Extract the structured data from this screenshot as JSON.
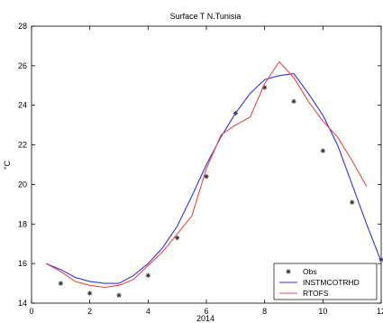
{
  "chart_data": {
    "type": "line",
    "title": "Surface T N.Tunisia",
    "xlabel": "2014",
    "ylabel": "°C",
    "xlim": [
      0,
      12
    ],
    "ylim": [
      14,
      28
    ],
    "xticks": [
      0,
      2,
      4,
      6,
      8,
      10,
      12
    ],
    "yticks": [
      14,
      16,
      18,
      20,
      22,
      24,
      26,
      28
    ],
    "grid": false,
    "legend_position": "lower-right",
    "series": [
      {
        "name": "Obs",
        "style": "marker",
        "marker": "asterisk",
        "color": "#333333",
        "x": [
          1,
          2,
          3,
          4,
          5,
          6,
          7,
          8,
          9,
          10,
          11,
          12
        ],
        "values": [
          15.0,
          14.5,
          14.4,
          15.4,
          17.3,
          20.4,
          23.6,
          24.9,
          24.2,
          21.7,
          19.1,
          16.2
        ]
      },
      {
        "name": "INSTMCOTRHD",
        "style": "line",
        "color": "#3333dd",
        "x": [
          0.5,
          1,
          1.5,
          2,
          2.5,
          3,
          3.5,
          4,
          4.5,
          5,
          5.5,
          6,
          6.5,
          7,
          7.5,
          8,
          8.5,
          9,
          9.5,
          10,
          10.5,
          11,
          11.5,
          12
        ],
        "values": [
          16.0,
          15.7,
          15.3,
          15.1,
          15.0,
          15.0,
          15.4,
          16.0,
          16.8,
          17.9,
          19.4,
          21.0,
          22.4,
          23.6,
          24.6,
          25.3,
          25.5,
          25.6,
          24.6,
          23.5,
          22.0,
          20.0,
          18.0,
          16.1
        ]
      },
      {
        "name": "RTOFS",
        "style": "line",
        "color": "#ee4444",
        "x": [
          0.5,
          1,
          1.5,
          2,
          2.5,
          3,
          3.5,
          4,
          4.5,
          5,
          5.5,
          6,
          6.5,
          7,
          7.5,
          8,
          8.5,
          9,
          9.5,
          10,
          10.5,
          11,
          11.5
        ],
        "values": [
          16.0,
          15.6,
          15.1,
          14.9,
          14.8,
          14.9,
          15.2,
          15.9,
          16.6,
          17.5,
          18.4,
          20.8,
          22.5,
          23.0,
          23.4,
          25.1,
          26.2,
          25.4,
          24.2,
          23.2,
          22.4,
          21.2,
          19.9
        ]
      }
    ]
  }
}
